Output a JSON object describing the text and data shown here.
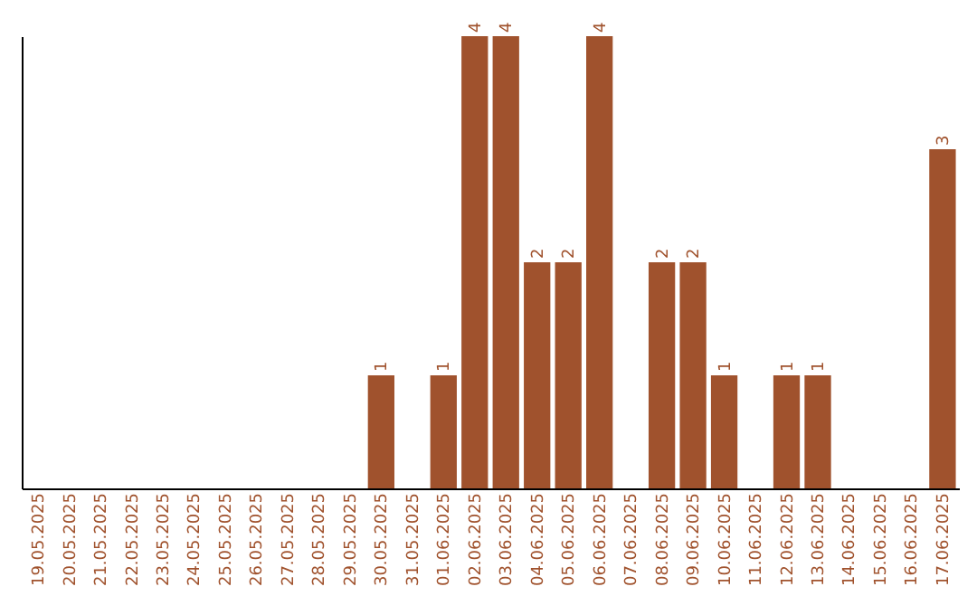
{
  "chart_data": {
    "type": "bar",
    "categories": [
      "19.05.2025",
      "20.05.2025",
      "21.05.2025",
      "22.05.2025",
      "23.05.2025",
      "24.05.2025",
      "25.05.2025",
      "26.05.2025",
      "27.05.2025",
      "28.05.2025",
      "29.05.2025",
      "30.05.2025",
      "31.05.2025",
      "01.06.2025",
      "02.06.2025",
      "03.06.2025",
      "04.06.2025",
      "05.06.2025",
      "06.06.2025",
      "07.06.2025",
      "08.06.2025",
      "09.06.2025",
      "10.06.2025",
      "11.06.2025",
      "12.06.2025",
      "13.06.2025",
      "14.06.2025",
      "15.06.2025",
      "16.06.2025",
      "17.06.2025"
    ],
    "values": [
      0,
      0,
      0,
      0,
      0,
      0,
      0,
      0,
      0,
      0,
      0,
      1,
      0,
      1,
      4,
      4,
      2,
      2,
      4,
      0,
      2,
      2,
      1,
      0,
      1,
      1,
      0,
      0,
      0,
      3
    ],
    "value_labels": [
      null,
      null,
      null,
      null,
      null,
      null,
      null,
      null,
      null,
      null,
      null,
      "1",
      null,
      "1",
      "4",
      "4",
      "2",
      "2",
      "4",
      null,
      "2",
      "2",
      "1",
      null,
      "1",
      "1",
      null,
      null,
      null,
      "3"
    ],
    "color": "#a0522d"
  }
}
